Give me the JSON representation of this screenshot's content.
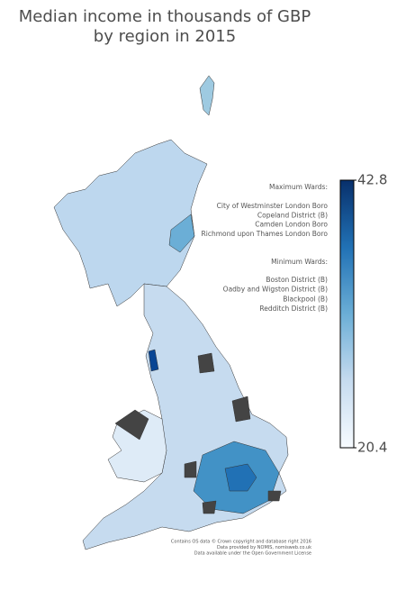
{
  "chart_data": {
    "type": "choropleth",
    "title": [
      "Median income in thousands of GBP",
      "by region in 2015"
    ],
    "colorbar": {
      "clim": [
        20.4,
        42.8
      ],
      "ticks": [
        20.4,
        42.8
      ],
      "colors": [
        "#f7fbff",
        "#c6dbef",
        "#6baed6",
        "#2171b5",
        "#08306b"
      ]
    },
    "annotations": {
      "max_heading": "Maximum Wards:",
      "max_wards": [
        "City of Westminster London Boro",
        "Copeland District (B)",
        "Camden London Boro",
        "Richmond upon Thames London Boro"
      ],
      "min_heading": "Minimum Wards:",
      "min_wards": [
        "Boston District (B)",
        "Oadby and Wigston District (B)",
        "Blackpool (B)",
        "Redditch District (B)"
      ]
    },
    "credits": [
      "Contains OS data © Crown copyright and database right 2016",
      "Data provided by NOMIS, nomisweb.co.uk",
      "Data available under the Open Government License"
    ]
  }
}
